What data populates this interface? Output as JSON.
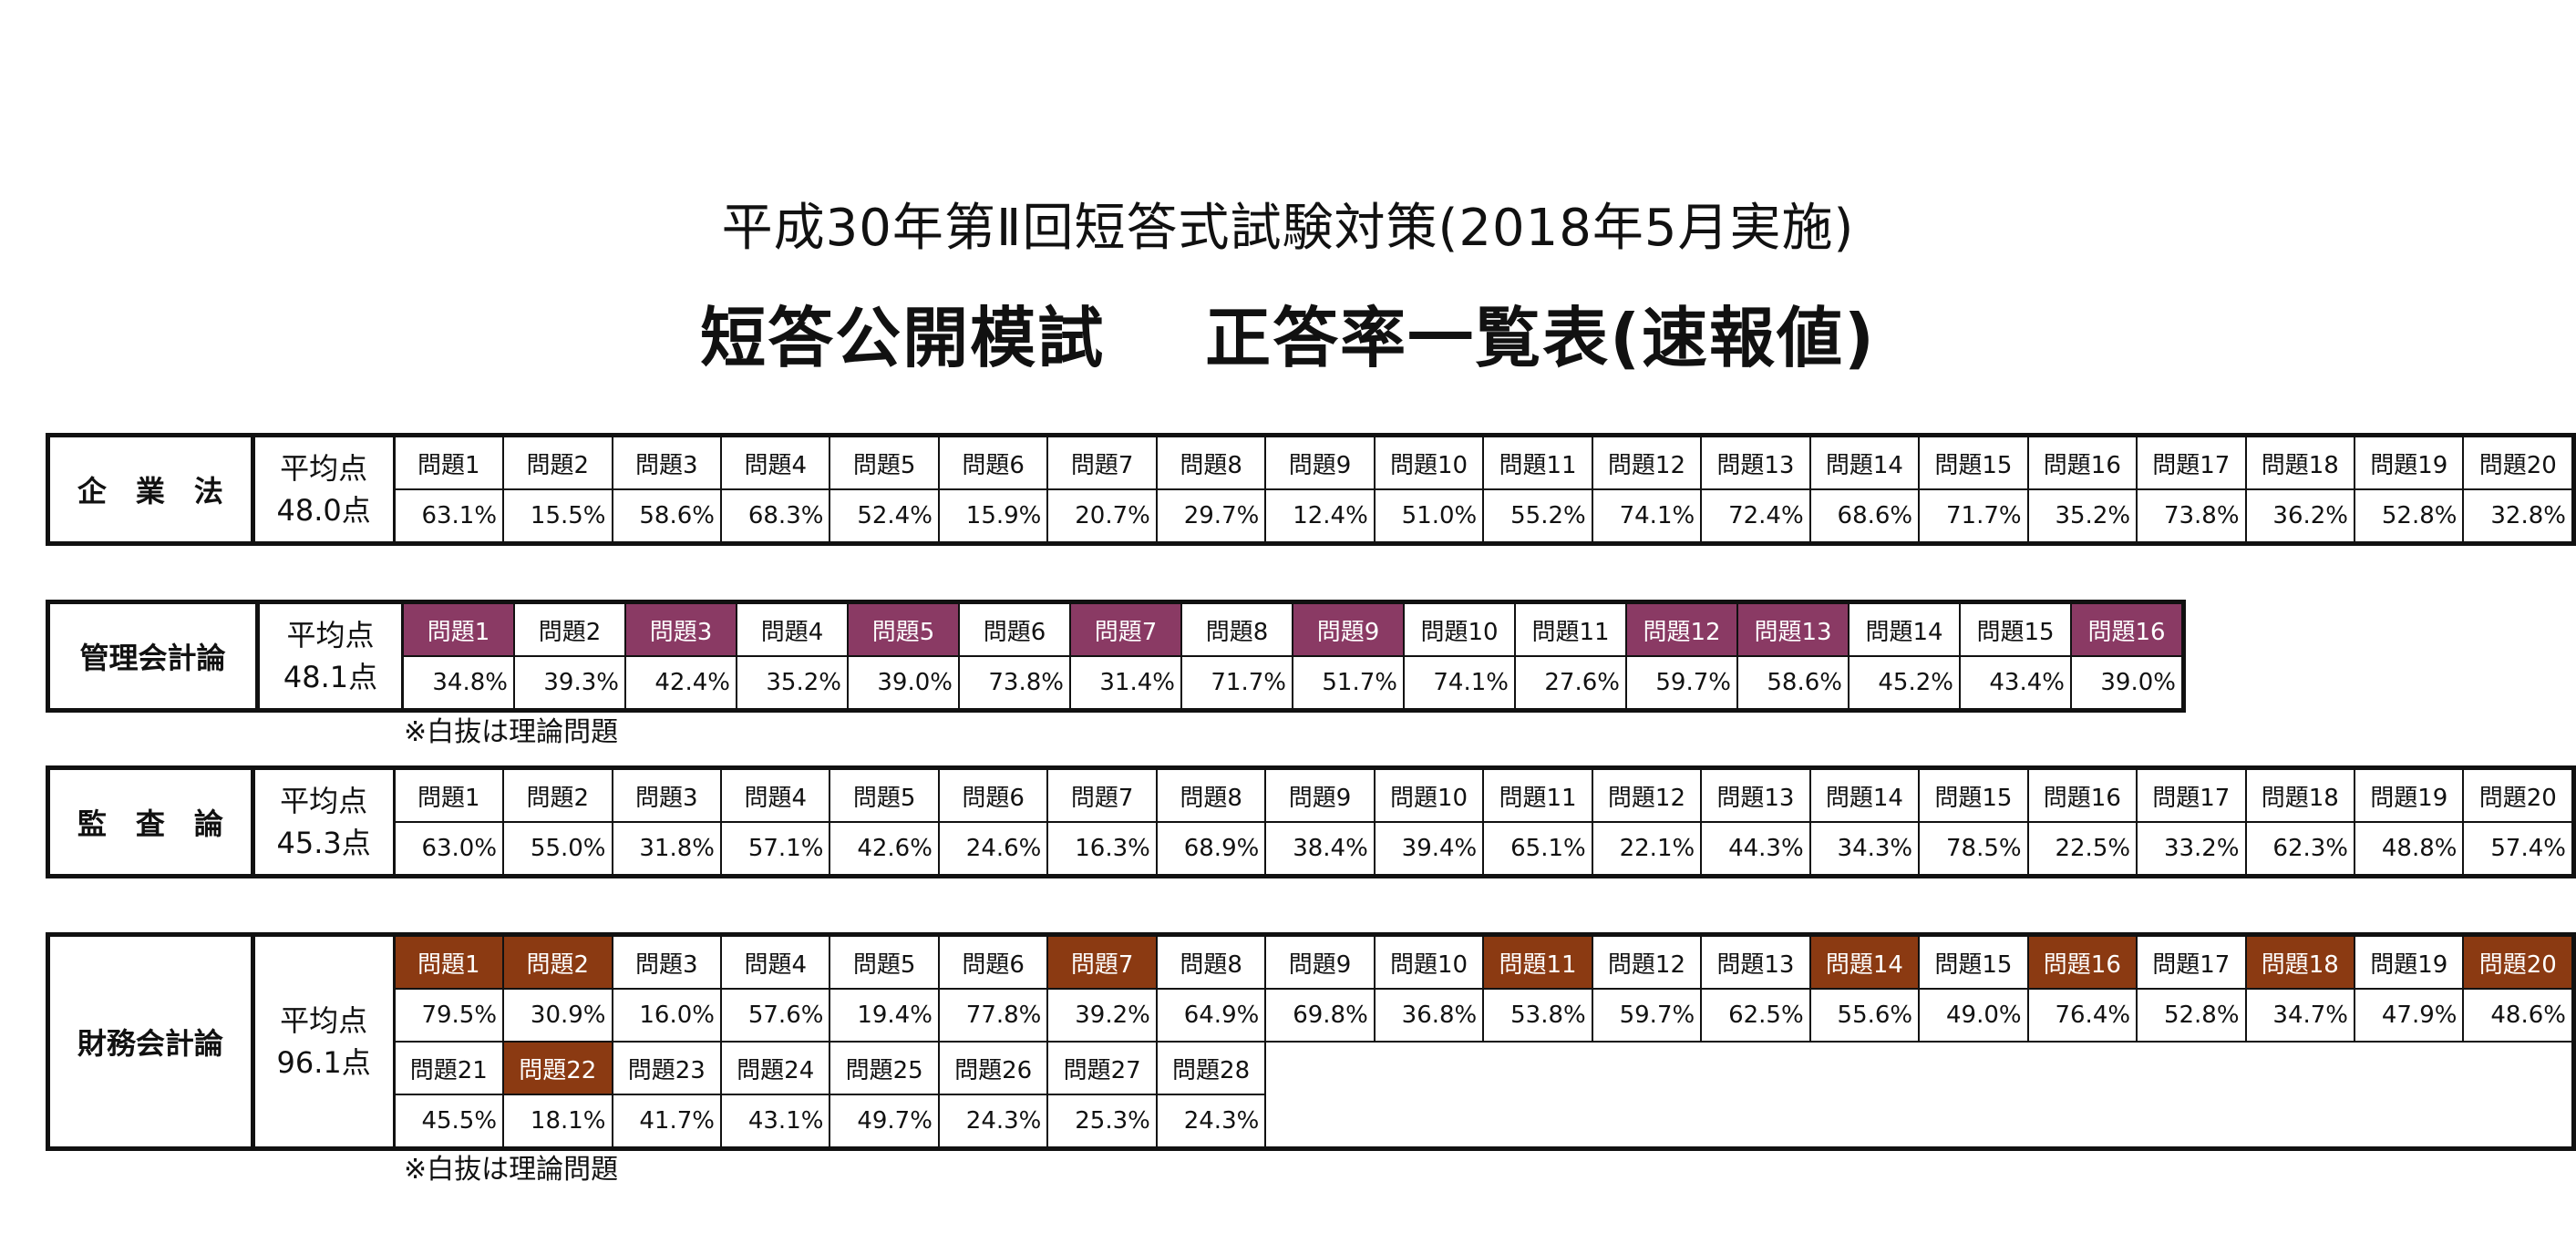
{
  "title_line1": "平成30年第Ⅱ回短答式試験対策(2018年5月実施)",
  "title_line2_left": "短答公開模試",
  "title_line2_right": "正答率一覧表(速報値)",
  "note_text": "※白抜は理論問題",
  "colors": {
    "purple_highlight": "#8a3a64",
    "brown_highlight": "#8b3a12",
    "border": "#111111"
  },
  "sections": [
    {
      "subject": "企　業　法",
      "avg_label": "平均点",
      "avg_value": "48.0点",
      "questions": [
        "問題1",
        "問題2",
        "問題3",
        "問題4",
        "問題5",
        "問題6",
        "問題7",
        "問題8",
        "問題9",
        "問題10",
        "問題11",
        "問題12",
        "問題13",
        "問題14",
        "問題15",
        "問題16",
        "問題17",
        "問題18",
        "問題19",
        "問題20"
      ],
      "rates": [
        "63.1%",
        "15.5%",
        "58.6%",
        "68.3%",
        "52.4%",
        "15.9%",
        "20.7%",
        "29.7%",
        "12.4%",
        "51.0%",
        "55.2%",
        "74.1%",
        "72.4%",
        "68.6%",
        "71.7%",
        "35.2%",
        "73.8%",
        "36.2%",
        "52.8%",
        "32.8%"
      ],
      "highlighted": []
    },
    {
      "subject": "管理会計論",
      "avg_label": "平均点",
      "avg_value": "48.1点",
      "questions": [
        "問題1",
        "問題2",
        "問題3",
        "問題4",
        "問題5",
        "問題6",
        "問題7",
        "問題8",
        "問題9",
        "問題10",
        "問題11",
        "問題12",
        "問題13",
        "問題14",
        "問題15",
        "問題16"
      ],
      "rates": [
        "34.8%",
        "39.3%",
        "42.4%",
        "35.2%",
        "39.0%",
        "73.8%",
        "31.4%",
        "71.7%",
        "51.7%",
        "74.1%",
        "27.6%",
        "59.7%",
        "58.6%",
        "45.2%",
        "43.4%",
        "39.0%"
      ],
      "highlighted": [
        1,
        3,
        5,
        7,
        9,
        12,
        13,
        16
      ]
    },
    {
      "subject": "監　査　論",
      "avg_label": "平均点",
      "avg_value": "45.3点",
      "questions": [
        "問題1",
        "問題2",
        "問題3",
        "問題4",
        "問題5",
        "問題6",
        "問題7",
        "問題8",
        "問題9",
        "問題10",
        "問題11",
        "問題12",
        "問題13",
        "問題14",
        "問題15",
        "問題16",
        "問題17",
        "問題18",
        "問題19",
        "問題20"
      ],
      "rates": [
        "63.0%",
        "55.0%",
        "31.8%",
        "57.1%",
        "42.6%",
        "24.6%",
        "16.3%",
        "68.9%",
        "38.4%",
        "39.4%",
        "65.1%",
        "22.1%",
        "44.3%",
        "34.3%",
        "78.5%",
        "22.5%",
        "33.2%",
        "62.3%",
        "48.8%",
        "57.4%"
      ],
      "highlighted": []
    },
    {
      "subject": "財務会計論",
      "avg_label": "平均点",
      "avg_value": "96.1点",
      "questions": [
        "問題1",
        "問題2",
        "問題3",
        "問題4",
        "問題5",
        "問題6",
        "問題7",
        "問題8",
        "問題9",
        "問題10",
        "問題11",
        "問題12",
        "問題13",
        "問題14",
        "問題15",
        "問題16",
        "問題17",
        "問題18",
        "問題19",
        "問題20",
        "問題21",
        "問題22",
        "問題23",
        "問題24",
        "問題25",
        "問題26",
        "問題27",
        "問題28"
      ],
      "rates": [
        "79.5%",
        "30.9%",
        "16.0%",
        "57.6%",
        "19.4%",
        "77.8%",
        "39.2%",
        "64.9%",
        "69.8%",
        "36.8%",
        "53.8%",
        "59.7%",
        "62.5%",
        "55.6%",
        "49.0%",
        "76.4%",
        "52.8%",
        "34.7%",
        "47.9%",
        "48.6%",
        "45.5%",
        "18.1%",
        "41.7%",
        "43.1%",
        "49.7%",
        "24.3%",
        "25.3%",
        "24.3%"
      ],
      "highlighted": [
        1,
        2,
        7,
        11,
        14,
        16,
        18,
        20,
        22
      ]
    }
  ]
}
